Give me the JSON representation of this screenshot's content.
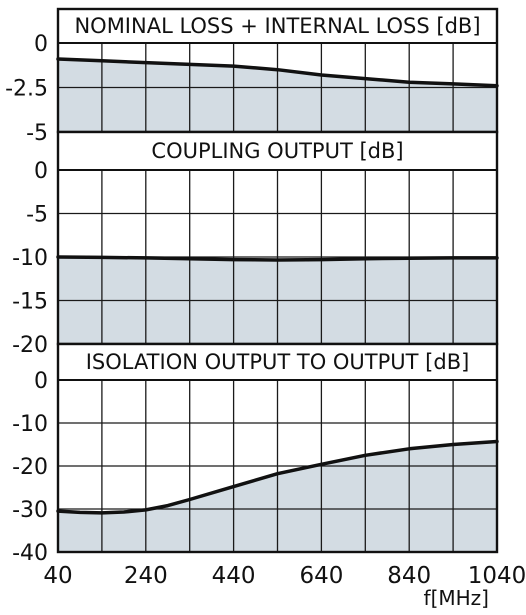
{
  "chart_data": [
    {
      "type": "area",
      "title": "NOMINAL LOSS + INTERNAL LOSS [dB]",
      "ylim": [
        -5,
        0
      ],
      "yticks": [
        "0",
        "-2.5",
        "-5"
      ],
      "xlim": [
        40,
        1040
      ],
      "grid": true,
      "color": "#d3dce3",
      "series": [
        {
          "x": [
            40,
            140,
            240,
            340,
            440,
            540,
            640,
            740,
            840,
            940,
            1040
          ],
          "y": [
            -0.9,
            -1.0,
            -1.1,
            -1.2,
            -1.3,
            -1.5,
            -1.8,
            -2.0,
            -2.2,
            -2.3,
            -2.4
          ]
        }
      ]
    },
    {
      "type": "area",
      "title": "COUPLING OUTPUT [dB]",
      "ylim": [
        -20,
        0
      ],
      "yticks": [
        "0",
        "-5",
        "-10",
        "-15",
        "-20"
      ],
      "xlim": [
        40,
        1040
      ],
      "grid": true,
      "color": "#d3dce3",
      "series": [
        {
          "x": [
            40,
            140,
            240,
            340,
            440,
            540,
            640,
            740,
            840,
            940,
            1040
          ],
          "y": [
            -10.0,
            -10.05,
            -10.1,
            -10.2,
            -10.3,
            -10.35,
            -10.3,
            -10.2,
            -10.15,
            -10.1,
            -10.1
          ]
        }
      ]
    },
    {
      "type": "area",
      "title": "ISOLATION OUTPUT TO OUTPUT [dB]",
      "ylim": [
        -40,
        0
      ],
      "yticks": [
        "0",
        "-10",
        "-20",
        "-30",
        "-40"
      ],
      "xlim": [
        40,
        1040
      ],
      "grid": true,
      "color": "#d3dce3",
      "series": [
        {
          "x": [
            40,
            90,
            140,
            190,
            240,
            290,
            340,
            440,
            540,
            640,
            740,
            840,
            940,
            1040
          ],
          "y": [
            -30.5,
            -30.8,
            -30.9,
            -30.7,
            -30.2,
            -29.2,
            -27.8,
            -24.8,
            -21.8,
            -19.6,
            -17.5,
            -16.0,
            -15.0,
            -14.3
          ]
        }
      ]
    }
  ],
  "x_axis": {
    "ticks": [
      "40",
      "240",
      "440",
      "640",
      "840",
      "1040"
    ],
    "unit_label": "f[MHz]"
  }
}
